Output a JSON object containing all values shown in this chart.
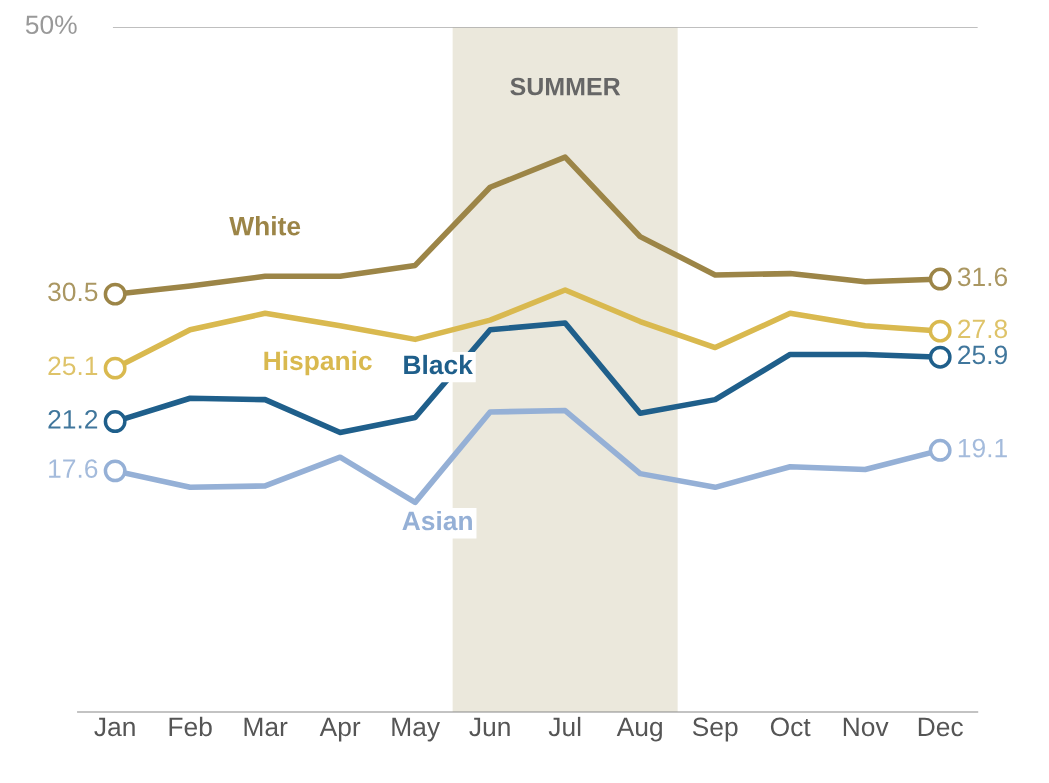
{
  "chart_data": {
    "type": "line",
    "categories": [
      "Jan",
      "Feb",
      "Mar",
      "Apr",
      "May",
      "Jun",
      "Jul",
      "Aug",
      "Sep",
      "Oct",
      "Nov",
      "Dec"
    ],
    "series": [
      {
        "name": "White",
        "color": "#9c8547",
        "values": [
          30.5,
          31.1,
          31.8,
          31.8,
          32.6,
          38.3,
          40.5,
          34.7,
          31.9,
          32.0,
          31.4,
          31.6
        ],
        "value_labels": [
          "30.5",
          null,
          null,
          null,
          null,
          null,
          null,
          null,
          null,
          null,
          null,
          "31.6"
        ]
      },
      {
        "name": "Hispanic",
        "color": "#d9b94f",
        "values": [
          25.1,
          27.9,
          29.1,
          28.2,
          27.2,
          28.6,
          30.8,
          28.5,
          26.6,
          29.1,
          28.2,
          27.8
        ],
        "value_labels": [
          "25.1",
          null,
          null,
          null,
          null,
          null,
          null,
          null,
          null,
          null,
          null,
          "27.8"
        ]
      },
      {
        "name": "Black",
        "color": "#1f5f8b",
        "values": [
          21.2,
          22.9,
          22.8,
          20.4,
          21.5,
          27.9,
          28.4,
          21.8,
          22.8,
          26.1,
          26.1,
          25.9
        ],
        "value_labels": [
          "21.2",
          null,
          null,
          null,
          null,
          null,
          null,
          null,
          null,
          null,
          null,
          "25.9"
        ]
      },
      {
        "name": "Asian",
        "color": "#95b0d6",
        "values": [
          17.6,
          16.4,
          16.5,
          18.6,
          15.3,
          21.9,
          22.0,
          17.4,
          16.4,
          17.9,
          17.7,
          19.1
        ],
        "value_labels": [
          "17.6",
          null,
          null,
          null,
          null,
          null,
          null,
          null,
          null,
          null,
          null,
          "19.1"
        ]
      }
    ],
    "ylim": [
      0,
      50
    ],
    "ref_lines": [
      {
        "axis": "y",
        "value": 50,
        "label": "50%",
        "color": "#aaaaaa"
      }
    ],
    "line_style": "solid",
    "bands": [
      {
        "axis": "x",
        "from": "Jun",
        "to": "Aug",
        "label": "SUMMER",
        "color": "#ebe8dc"
      }
    ]
  }
}
